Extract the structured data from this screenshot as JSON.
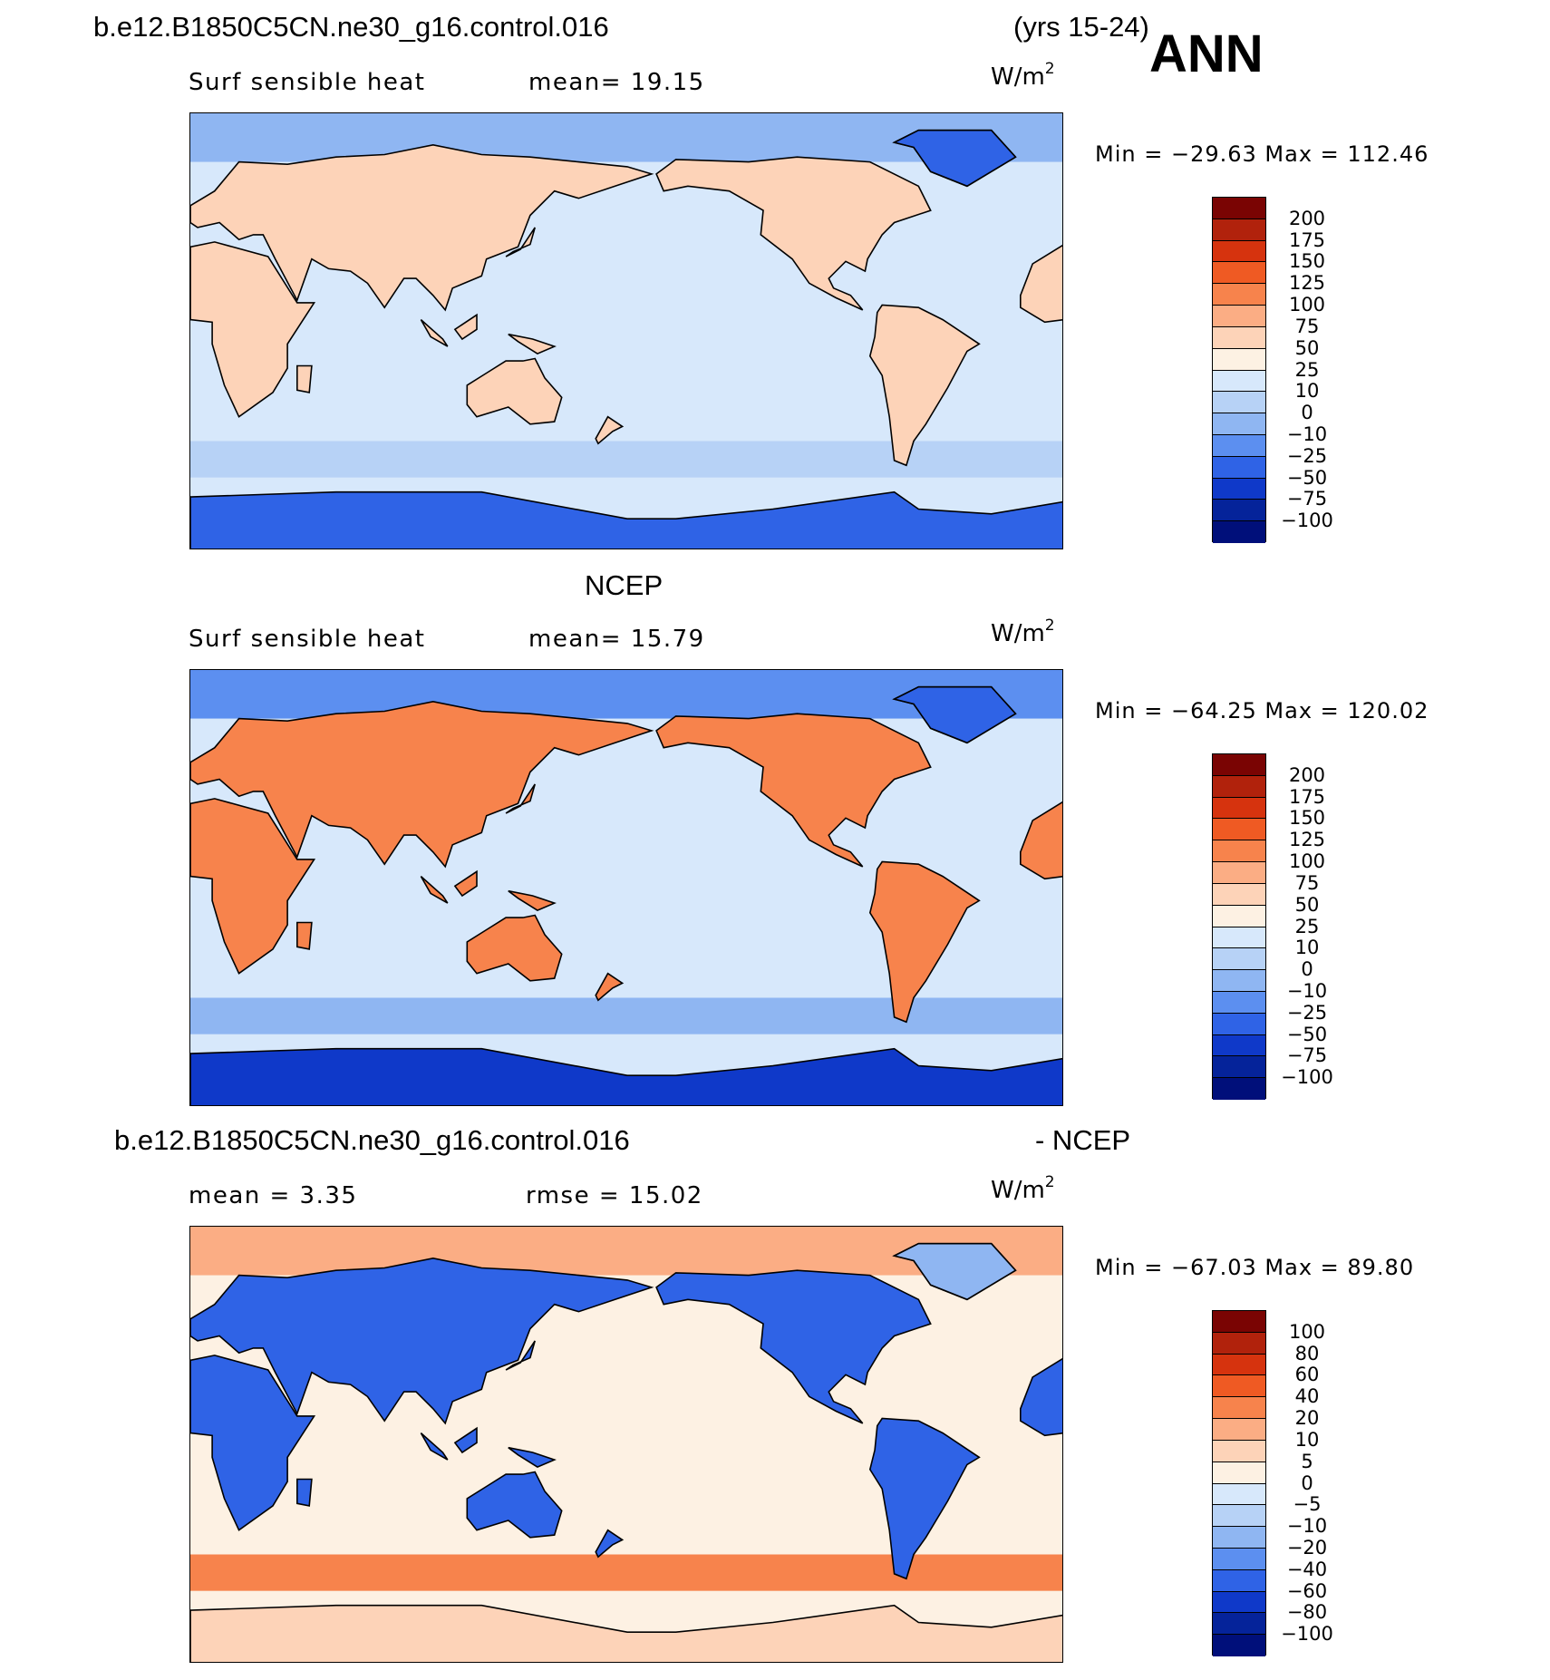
{
  "header": {
    "case_name": "b.e12.B1850C5CN.ne30_g16.control.016",
    "years": "(yrs 15-24)",
    "season": "ANN"
  },
  "panels": [
    {
      "title": "",
      "variable": "Surf sensible heat",
      "stat1": "mean=  19.15",
      "stat2": "",
      "units_base": "W/m",
      "units_exp": "2",
      "minmax": "Min = −29.63 Max = 112.46",
      "colorbar": {
        "labels": [
          "200",
          "175",
          "150",
          "125",
          "100",
          "75",
          "50",
          "25",
          "10",
          "0",
          "−10",
          "−25",
          "−50",
          "−75",
          "−100"
        ],
        "colors": [
          "#7a0403",
          "#b1220c",
          "#d6330e",
          "#ef5a23",
          "#f7834c",
          "#fbad84",
          "#fdd3b8",
          "#fdf1e3",
          "#d7e8fb",
          "#b7d2f6",
          "#8fb6f2",
          "#5c8ff0",
          "#2f63e6",
          "#0f39c9",
          "#05239a",
          "#000f7a"
        ]
      },
      "map": {
        "ocean": "#d7e8fb",
        "land_color": "#fdd3b8",
        "arctic": "#8fb6f2",
        "antarctic": "#2f63e6",
        "greenland": "#2f63e6",
        "south_band": "#b7d2f6"
      }
    },
    {
      "title": "NCEP",
      "variable": "Surf sensible heat",
      "stat1": "mean=  15.79",
      "stat2": "",
      "units_base": "W/m",
      "units_exp": "2",
      "minmax": "Min = −64.25 Max = 120.02",
      "colorbar": {
        "labels": [
          "200",
          "175",
          "150",
          "125",
          "100",
          "75",
          "50",
          "25",
          "10",
          "0",
          "−10",
          "−25",
          "−50",
          "−75",
          "−100"
        ],
        "colors": [
          "#7a0403",
          "#b1220c",
          "#d6330e",
          "#ef5a23",
          "#f7834c",
          "#fbad84",
          "#fdd3b8",
          "#fdf1e3",
          "#d7e8fb",
          "#b7d2f6",
          "#8fb6f2",
          "#5c8ff0",
          "#2f63e6",
          "#0f39c9",
          "#05239a",
          "#000f7a"
        ]
      },
      "map": {
        "ocean": "#d7e8fb",
        "land_color": "#f7834c",
        "arctic": "#5c8ff0",
        "antarctic": "#0f39c9",
        "greenland": "#2f63e6",
        "south_band": "#8fb6f2"
      }
    },
    {
      "title": "b.e12.B1850C5CN.ne30_g16.control.016",
      "title_right": "- NCEP",
      "variable": "",
      "stat1": "mean =   3.35",
      "stat2": "rmse =   15.02",
      "units_base": "W/m",
      "units_exp": "2",
      "minmax": "Min = −67.03 Max =  89.80",
      "colorbar": {
        "labels": [
          "100",
          "80",
          "60",
          "40",
          "20",
          "10",
          "5",
          "0",
          "−5",
          "−10",
          "−20",
          "−40",
          "−60",
          "−80",
          "−100"
        ],
        "colors": [
          "#7a0403",
          "#b1220c",
          "#d6330e",
          "#ef5a23",
          "#f7834c",
          "#fbad84",
          "#fdd3b8",
          "#fdf1e3",
          "#d7e8fb",
          "#b7d2f6",
          "#8fb6f2",
          "#5c8ff0",
          "#2f63e6",
          "#0f39c9",
          "#05239a",
          "#000f7a"
        ]
      },
      "map": {
        "ocean": "#fdf1e3",
        "land_color": "#2f63e6",
        "arctic": "#fbad84",
        "antarctic": "#fdd3b8",
        "greenland": "#8fb6f2",
        "south_band": "#f7834c"
      }
    }
  ]
}
